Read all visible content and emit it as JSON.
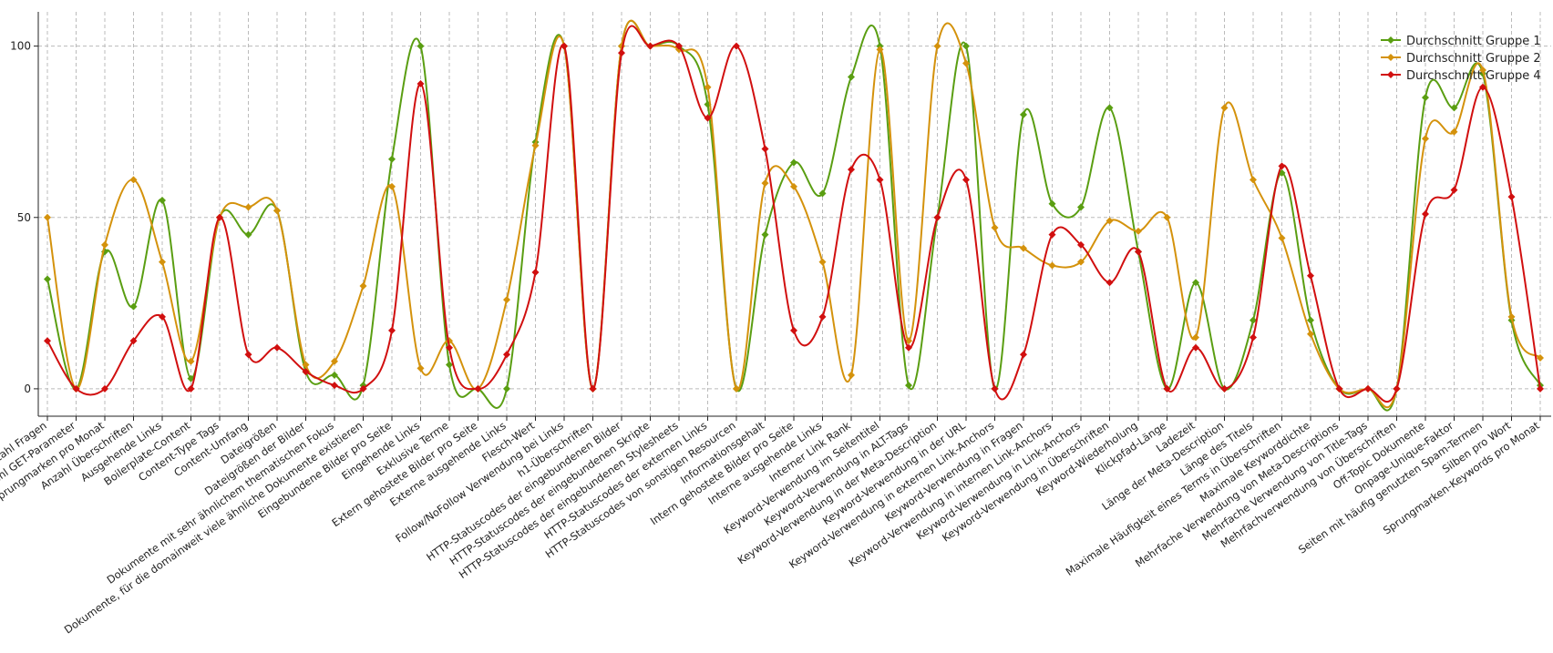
{
  "chart_data": {
    "type": "line",
    "categories": [
      "Anzahl Fragen",
      "Anzahl GET-Parameter",
      "Anzahl Sprungmarken pro Monat",
      "Anzahl Überschriften",
      "Ausgehende Links",
      "Boilerplate-Content",
      "Content-Type Tags",
      "Content-Umfang",
      "Dateigrößen",
      "Dateigrößen der Bilder",
      "Dokumente mit sehr ähnlichem thematischen Fokus",
      "Dokumente, für die domainweit viele ähnliche Dokumente existieren",
      "Eingebundene Bilder pro Seite",
      "Eingehende Links",
      "Exklusive Terme",
      "Extern gehostete Bilder pro Seite",
      "Externe ausgehende Links",
      "Flesch-Wert",
      "Follow/NoFollow Verwendung bei Links",
      "h1-Überschriften",
      "HTTP-Statuscodes der eingebundenen Bilder",
      "HTTP-Statuscodes der eingebundenen Skripte",
      "HTTP-Statuscodes der eingebundenen Stylesheets",
      "HTTP-Statuscodes der externen Links",
      "HTTP-Statuscodes von sonstigen Resourcen",
      "Informationsgehalt",
      "Intern gehostete Bilder pro Seite",
      "Interne ausgehende Links",
      "Interner Link Rank",
      "Keyword-Verwendung im Seitentitel",
      "Keyword-Verwendung in ALT-Tags",
      "Keyword-Verwendung in der Meta-Description",
      "Keyword-Verwendung in der URL",
      "Keyword-Verwendung in externen Link-Anchors",
      "Keyword-Verwendung in Fragen",
      "Keyword-Verwendung in internen Link-Anchors",
      "Keyword-Verwendung in Link-Anchors",
      "Keyword-Verwendung in Überschriften",
      "Keyword-Wiederholung",
      "Klickpfad-Länge",
      "Ladezeit",
      "Länge der Meta-Description",
      "Länge des Titels",
      "Maximale Häufigkeit eines Terms in Überschriften",
      "Maximale Keyworddichte",
      "Mehrfache Verwendung von Meta-Descriptions",
      "Mehrfache Verwendung von Title-Tags",
      "Mehrfachverwendung von Überschriften",
      "Off-Topic Dokumente",
      "Onpage-Unique-Faktor",
      "Seiten mit häufig genutzten Spam-Termen",
      "Silben pro Wort",
      "Sprungmarken-Keywords pro Monat"
    ],
    "series": [
      {
        "name": "Durchschnitt Gruppe 1",
        "color": "#5a9e12",
        "values": [
          32,
          0,
          40,
          24,
          55,
          3,
          50,
          45,
          52,
          5,
          4,
          1,
          67,
          100,
          7,
          0,
          0,
          72,
          100,
          0,
          100,
          100,
          100,
          83,
          0,
          45,
          66,
          57,
          91,
          100,
          1,
          50,
          100,
          0,
          80,
          54,
          53,
          82,
          40,
          0,
          31,
          0,
          20,
          63,
          20,
          0,
          0,
          0,
          85,
          82,
          92,
          20,
          1
        ]
      },
      {
        "name": "Durchschnitt Gruppe 2",
        "color": "#d4920c",
        "values": [
          50,
          0,
          42,
          61,
          37,
          8,
          50,
          53,
          52,
          7,
          8,
          30,
          59,
          6,
          14,
          0,
          26,
          71,
          100,
          0,
          100,
          100,
          99,
          88,
          0,
          60,
          59,
          37,
          4,
          99,
          14,
          100,
          95,
          47,
          41,
          36,
          37,
          49,
          46,
          50,
          15,
          82,
          61,
          44,
          16,
          0,
          0,
          0,
          73,
          75,
          93,
          21,
          9
        ]
      },
      {
        "name": "Durchschnitt Gruppe 4",
        "color": "#d10f0f",
        "values": [
          14,
          0,
          0,
          14,
          21,
          0,
          50,
          10,
          12,
          5,
          1,
          0,
          17,
          89,
          12,
          0,
          10,
          34,
          100,
          0,
          98,
          100,
          100,
          79,
          100,
          70,
          17,
          21,
          64,
          61,
          12,
          50,
          61,
          0,
          10,
          45,
          42,
          31,
          40,
          0,
          12,
          0,
          15,
          65,
          33,
          0,
          0,
          0,
          51,
          58,
          88,
          56,
          0
        ]
      }
    ],
    "ylim": [
      -8,
      110
    ],
    "yticks": [
      0,
      50,
      100
    ],
    "grid": true,
    "legend": "upper right",
    "smooth": true
  }
}
